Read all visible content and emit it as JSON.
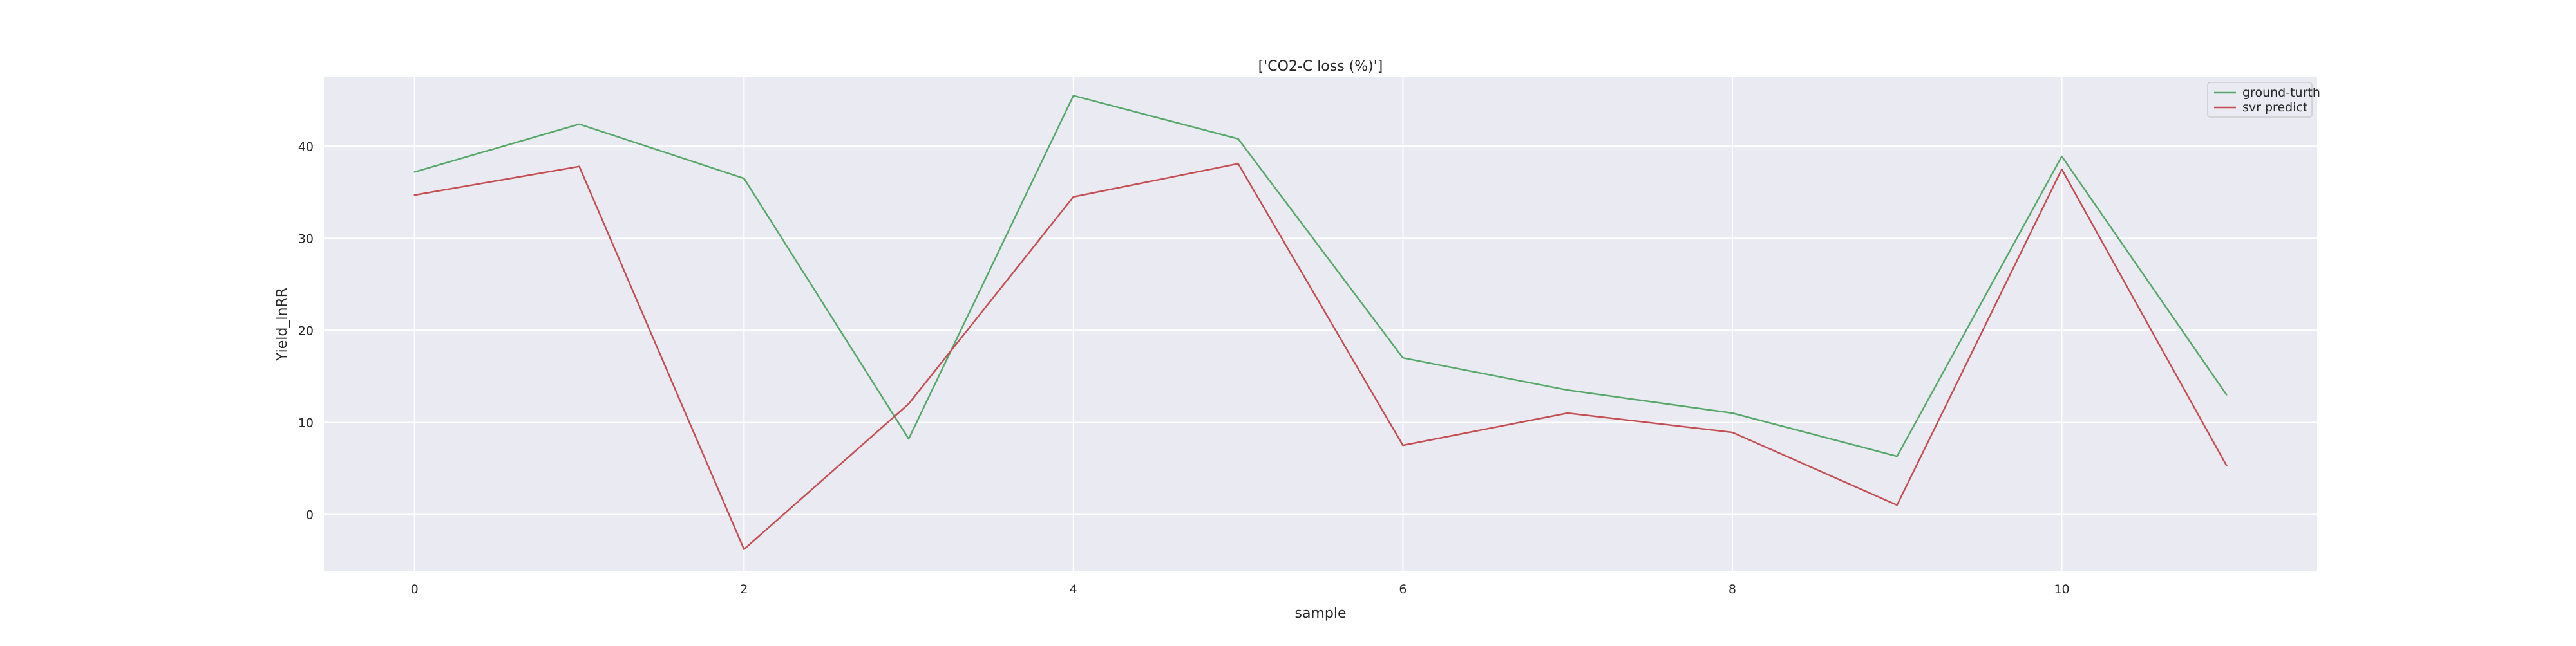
{
  "chart_data": {
    "type": "line",
    "title": "['CO2-C loss (%)']",
    "xlabel": "sample",
    "ylabel": "Yield_lnRR",
    "x": [
      0,
      1,
      2,
      3,
      4,
      5,
      6,
      7,
      8,
      9,
      10,
      11
    ],
    "xlim": [
      -0.55,
      11.55
    ],
    "ylim": [
      -6.2,
      47.5
    ],
    "xticks": [
      0,
      2,
      4,
      6,
      8,
      10
    ],
    "yticks": [
      0,
      10,
      20,
      30,
      40
    ],
    "grid": true,
    "legend_position": "top-right",
    "series": [
      {
        "name": "ground-turth",
        "color": "#55a868",
        "values": [
          37.2,
          42.4,
          36.5,
          8.2,
          45.5,
          40.8,
          17.0,
          13.5,
          11.0,
          6.3,
          38.9,
          13.0
        ]
      },
      {
        "name": "svr predict",
        "color": "#c44e52",
        "values": [
          34.7,
          37.8,
          -3.8,
          12.0,
          34.5,
          38.1,
          7.5,
          11.0,
          8.9,
          1.0,
          37.5,
          5.3
        ]
      }
    ]
  },
  "colors": {
    "plot_background": "#eaeaf2",
    "grid": "#ffffff",
    "text": "#262626"
  }
}
